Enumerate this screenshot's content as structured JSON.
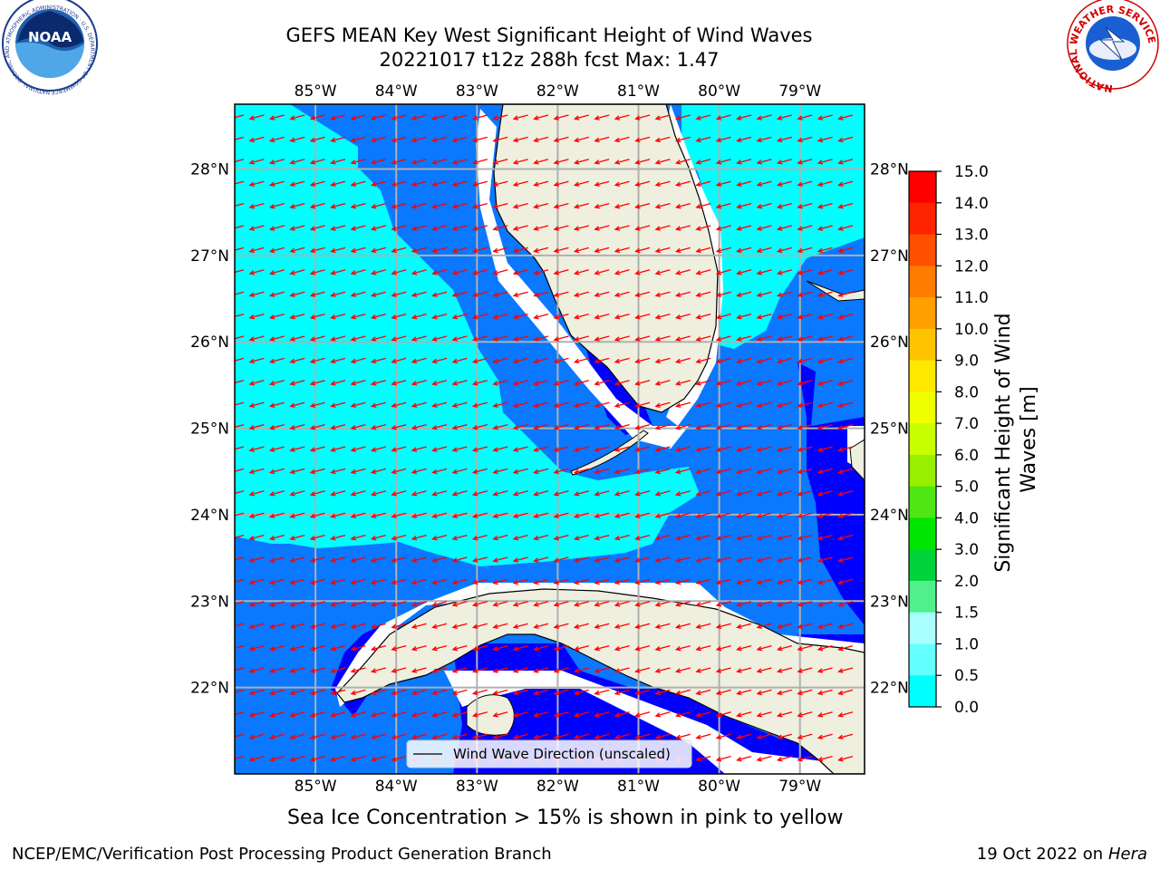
{
  "title": {
    "line1": "GEFS MEAN Key West Significant Height of Wind Waves",
    "line2": "20221017 t12z 288h fcst   Max: 1.47"
  },
  "map": {
    "lon_range": [
      -86.0,
      -78.2
    ],
    "lat_range": [
      21.0,
      28.75
    ],
    "lon_ticks": [
      {
        "value": -85,
        "label": "85°W"
      },
      {
        "value": -84,
        "label": "84°W"
      },
      {
        "value": -83,
        "label": "83°W"
      },
      {
        "value": -82,
        "label": "82°W"
      },
      {
        "value": -81,
        "label": "81°W"
      },
      {
        "value": -80,
        "label": "80°W"
      },
      {
        "value": -79,
        "label": "79°W"
      }
    ],
    "lat_ticks": [
      {
        "value": 28,
        "label": "28°N"
      },
      {
        "value": 27,
        "label": "27°N"
      },
      {
        "value": 26,
        "label": "26°N"
      },
      {
        "value": 25,
        "label": "25°N"
      },
      {
        "value": 24,
        "label": "24°N"
      },
      {
        "value": 23,
        "label": "23°N"
      },
      {
        "value": 22,
        "label": "22°N"
      }
    ],
    "gridlines": true,
    "legend": {
      "label": "Wind Wave Direction (unscaled)",
      "placement": "bottom-center"
    },
    "wave_direction_deg": 195,
    "colors": {
      "band_0_0_5": "#0000ff",
      "band_0_5_1_0": "#0a78ff",
      "band_1_0_1_5": "#00ffff",
      "land": "#efefdf",
      "arrow": "#ff0000",
      "grid": "#b0b0b0"
    }
  },
  "colorbar": {
    "label": "Significant Height of Wind Waves [m]",
    "ticks": [
      "15.0",
      "14.0",
      "13.0",
      "12.0",
      "11.0",
      "10.0",
      "9.0",
      "8.0",
      "7.0",
      "6.0",
      "5.0",
      "4.0",
      "3.0",
      "2.0",
      "1.5",
      "1.0",
      "0.5",
      "0.0"
    ],
    "colors": [
      "#ff0000",
      "#ff2400",
      "#ff5000",
      "#ff7c00",
      "#ffa000",
      "#ffc400",
      "#ffe800",
      "#f0ff00",
      "#c8ff00",
      "#96f000",
      "#50e614",
      "#00e600",
      "#00d23c",
      "#50f08c",
      "#aaffff",
      "#64ffff",
      "#00ffff",
      "#0a78ff",
      "#0000ff"
    ]
  },
  "footnote": "Sea Ice Concentration > 15% is shown in pink to yellow",
  "credit": "NCEP/EMC/Verification Post Processing Product Generation Branch",
  "date": {
    "prefix": "19 Oct 2022 on ",
    "host": "Hera"
  },
  "logos": {
    "left": {
      "text": "NOAA",
      "ring_text": "NATIONAL OCEANIC AND ATMOSPHERIC ADMINISTRATION · U.S. DEPARTMENT OF COMMERCE"
    },
    "right": {
      "ring_text": "NATIONAL WEATHER SERVICE"
    }
  }
}
